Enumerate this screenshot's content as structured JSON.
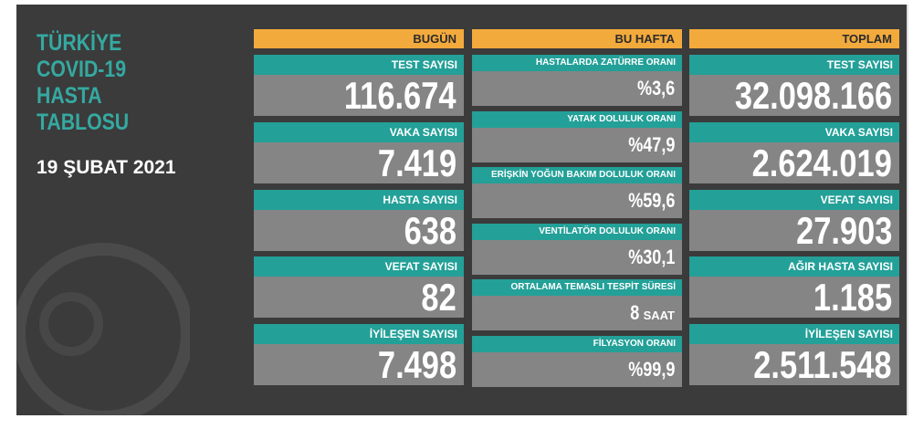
{
  "title_lines": [
    "TÜRKİYE",
    "COVID-19",
    "HASTA",
    "TABLOSU"
  ],
  "date": "19 ŞUBAT 2021",
  "columns": [
    {
      "header": "BUGÜN",
      "items": [
        {
          "label": "TEST SAYISI",
          "value": "116.674"
        },
        {
          "label": "VAKA SAYISI",
          "value": "7.419"
        },
        {
          "label": "HASTA SAYISI",
          "value": "638"
        },
        {
          "label": "VEFAT SAYISI",
          "value": "82"
        },
        {
          "label": "İYİLEŞEN SAYISI",
          "value": "7.498"
        }
      ]
    },
    {
      "header": "BU HAFTA",
      "items": [
        {
          "label": "HASTALARDA ZATÜRRE ORANI",
          "value": "%3,6"
        },
        {
          "label": "YATAK DOLULUK ORANI",
          "value": "%47,9"
        },
        {
          "label": "ERİŞKİN YOĞUN BAKIM DOLULUK ORANI",
          "value": "%59,6"
        },
        {
          "label": "VENTİLATÖR DOLULUK ORANI",
          "value": "%30,1"
        },
        {
          "label": "ORTALAMA TEMASLI TESPİT SÜRESİ",
          "value": "8",
          "unit": "SAAT"
        },
        {
          "label": "FİLYASYON ORANI",
          "value": "%99,9"
        }
      ]
    },
    {
      "header": "TOPLAM",
      "items": [
        {
          "label": "TEST SAYISI",
          "value": "32.098.166"
        },
        {
          "label": "VAKA SAYISI",
          "value": "2.624.019"
        },
        {
          "label": "VEFAT SAYISI",
          "value": "27.903"
        },
        {
          "label": "AĞIR HASTA SAYISI",
          "value": "1.185"
        },
        {
          "label": "İYİLEŞEN SAYISI",
          "value": "2.511.548"
        }
      ]
    }
  ]
}
